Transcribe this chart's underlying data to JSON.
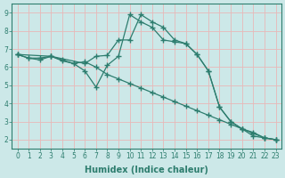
{
  "line1_x": [
    0,
    1,
    2,
    3,
    4,
    5,
    6,
    7,
    8,
    9,
    10,
    11,
    12,
    13,
    14,
    15,
    16,
    17,
    18,
    19,
    20,
    21,
    22,
    23
  ],
  "line1_y": [
    6.7,
    6.5,
    6.5,
    6.6,
    6.4,
    6.2,
    5.8,
    4.9,
    6.1,
    6.6,
    8.9,
    8.5,
    8.2,
    7.5,
    7.4,
    7.3,
    6.7,
    5.8,
    3.8,
    3.0,
    2.6,
    2.2,
    2.1,
    2.0
  ],
  "line2_x": [
    0,
    1,
    2,
    3,
    4,
    5,
    6,
    7,
    8,
    9,
    10,
    11,
    12,
    13,
    14,
    15,
    16,
    17,
    18,
    19,
    20,
    21,
    22,
    23
  ],
  "line2_y": [
    6.7,
    6.5,
    6.4,
    6.6,
    6.35,
    6.2,
    6.3,
    6.0,
    5.6,
    5.35,
    5.1,
    4.85,
    4.6,
    4.35,
    4.1,
    3.85,
    3.6,
    3.35,
    3.1,
    2.85,
    2.6,
    2.35,
    2.1,
    2.0
  ],
  "line3_x": [
    0,
    3,
    6,
    7,
    8,
    9,
    10,
    11,
    12,
    13,
    14,
    15,
    16,
    17,
    18,
    19,
    20,
    21,
    22,
    23
  ],
  "line3_y": [
    6.7,
    6.6,
    6.2,
    6.6,
    6.65,
    7.5,
    7.5,
    8.9,
    8.5,
    8.2,
    7.5,
    7.3,
    6.7,
    5.8,
    3.8,
    3.0,
    2.6,
    2.4,
    2.1,
    2.0
  ],
  "line_color": "#2d7d6e",
  "bg_color": "#cce8e8",
  "grid_color": "#b0d0d0",
  "xlabel": "Humidex (Indice chaleur)",
  "xlim": [
    -0.5,
    23.5
  ],
  "ylim": [
    1.5,
    9.5
  ],
  "xticks": [
    0,
    1,
    2,
    3,
    4,
    5,
    6,
    7,
    8,
    9,
    10,
    11,
    12,
    13,
    14,
    15,
    16,
    17,
    18,
    19,
    20,
    21,
    22,
    23
  ],
  "yticks": [
    2,
    3,
    4,
    5,
    6,
    7,
    8,
    9
  ],
  "marker": "+",
  "markersize": 4,
  "linewidth": 0.9,
  "xlabel_fontsize": 7,
  "tick_fontsize": 5.5
}
